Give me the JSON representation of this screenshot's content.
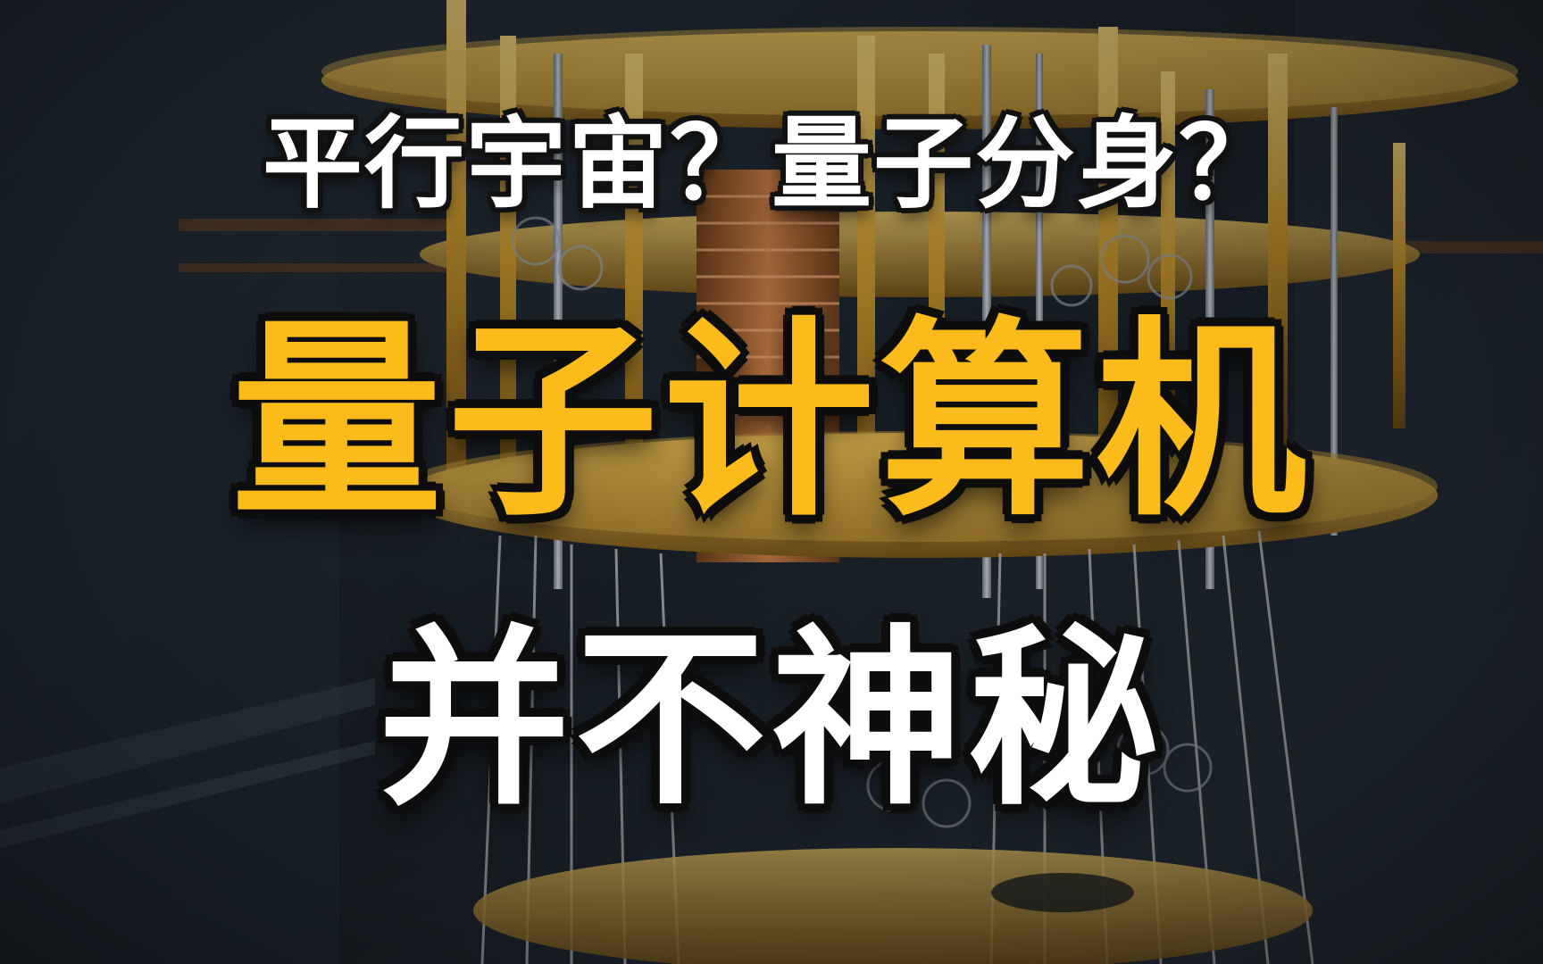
{
  "title_top": "平行宇宙？量子分身？",
  "title_main": "量子计算机",
  "title_bottom": "并不神秘",
  "colors": {
    "highlight": "#fbbb1b",
    "text_white": "#ffffff",
    "outline": "#0d0d0d",
    "gold": "#c8962e",
    "background": "#1f2730"
  },
  "background_subject": "quantum-computer-chandelier"
}
